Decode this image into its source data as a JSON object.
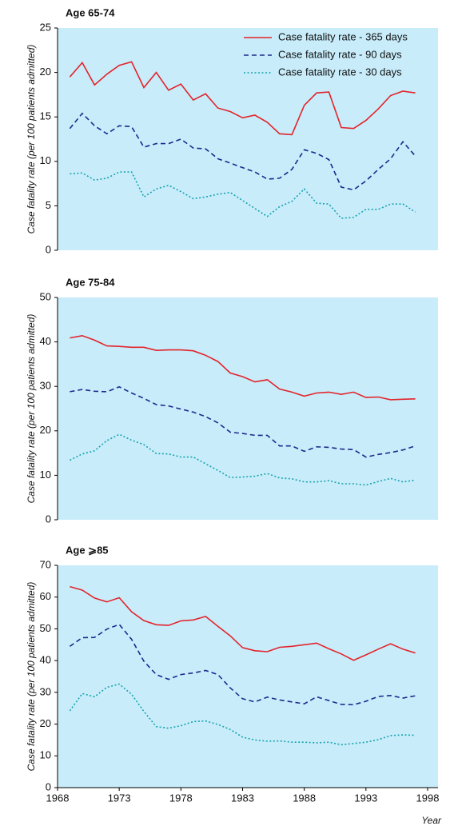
{
  "chart_data": [
    {
      "type": "line",
      "title": "Age 65-74",
      "ylabel": "Case fatality rate (per 100 patients admitted)",
      "x": [
        1969,
        1970,
        1971,
        1972,
        1973,
        1974,
        1975,
        1976,
        1977,
        1978,
        1979,
        1980,
        1981,
        1982,
        1983,
        1984,
        1985,
        1986,
        1987,
        1988,
        1989,
        1990,
        1991,
        1992,
        1993,
        1994,
        1995,
        1996,
        1997
      ],
      "xlim": [
        1968,
        1998
      ],
      "ylim": [
        0,
        25
      ],
      "yticks": [
        0,
        5,
        10,
        15,
        20,
        25
      ],
      "legend": "upper right",
      "series": [
        {
          "name": "Case fatality rate - 365 days",
          "color": "#e3242b",
          "style": "solid",
          "values": [
            19.5,
            21.1,
            18.6,
            19.8,
            20.8,
            21.2,
            18.3,
            20.0,
            18.0,
            18.7,
            16.9,
            17.6,
            16.0,
            15.6,
            14.9,
            15.2,
            14.4,
            13.1,
            13.0,
            16.3,
            17.7,
            17.8,
            13.8,
            13.7,
            14.6,
            15.9,
            17.4,
            17.9,
            17.7
          ]
        },
        {
          "name": "Case fatality rate - 90 days",
          "color": "#1c2a8c",
          "style": "dashed",
          "values": [
            13.7,
            15.4,
            14.0,
            13.1,
            14.0,
            13.9,
            11.6,
            12.0,
            12.0,
            12.5,
            11.5,
            11.4,
            10.3,
            9.8,
            9.3,
            8.8,
            8.0,
            8.1,
            9.1,
            11.3,
            10.9,
            10.2,
            7.1,
            6.8,
            7.8,
            9.1,
            10.3,
            12.2,
            10.6
          ]
        },
        {
          "name": "Case fatality rate - 30 days",
          "color": "#17a3ad",
          "style": "dotted",
          "values": [
            8.6,
            8.7,
            7.9,
            8.1,
            8.8,
            8.8,
            6.0,
            6.9,
            7.3,
            6.6,
            5.8,
            6.0,
            6.3,
            6.5,
            5.6,
            4.7,
            3.8,
            4.9,
            5.5,
            6.9,
            5.3,
            5.2,
            3.6,
            3.7,
            4.6,
            4.6,
            5.2,
            5.2,
            4.3
          ]
        }
      ]
    },
    {
      "type": "line",
      "title": "Age 75-84",
      "ylabel": "Case fatality rate (per 100 patients admitted)",
      "x": [
        1969,
        1970,
        1971,
        1972,
        1973,
        1974,
        1975,
        1976,
        1977,
        1978,
        1979,
        1980,
        1981,
        1982,
        1983,
        1984,
        1985,
        1986,
        1987,
        1988,
        1989,
        1990,
        1991,
        1992,
        1993,
        1994,
        1995,
        1996,
        1997
      ],
      "xlim": [
        1968,
        1998
      ],
      "ylim": [
        0,
        50
      ],
      "yticks": [
        0,
        10,
        20,
        30,
        40,
        50
      ],
      "series": [
        {
          "color": "#e3242b",
          "style": "solid",
          "values": [
            40.9,
            41.4,
            40.4,
            39.1,
            39.0,
            38.8,
            38.8,
            38.1,
            38.2,
            38.2,
            38.0,
            37.0,
            35.6,
            33.0,
            32.2,
            31.0,
            31.5,
            29.4,
            28.7,
            27.8,
            28.5,
            28.7,
            28.2,
            28.7,
            27.5,
            27.6,
            27.0,
            27.1,
            27.2
          ]
        },
        {
          "color": "#1c2a8c",
          "style": "dashed",
          "values": [
            28.8,
            29.3,
            28.9,
            28.8,
            29.9,
            28.5,
            27.3,
            25.9,
            25.6,
            24.9,
            24.2,
            23.2,
            21.8,
            19.7,
            19.4,
            19.0,
            19.0,
            16.6,
            16.6,
            15.4,
            16.4,
            16.3,
            15.9,
            15.8,
            14.1,
            14.7,
            15.1,
            15.7,
            16.6
          ]
        },
        {
          "color": "#17a3ad",
          "style": "dotted",
          "values": [
            13.4,
            14.8,
            15.5,
            17.8,
            19.2,
            17.9,
            16.9,
            14.9,
            14.8,
            14.1,
            14.1,
            12.6,
            11.1,
            9.5,
            9.6,
            9.8,
            10.4,
            9.4,
            9.2,
            8.5,
            8.5,
            8.8,
            8.1,
            8.1,
            7.8,
            8.6,
            9.3,
            8.5,
            8.9
          ]
        }
      ]
    },
    {
      "type": "line",
      "title": "Age ⩾85",
      "ylabel": "Case fatality rate (per 100 patients admitted)",
      "xlabel": "Year",
      "x": [
        1969,
        1970,
        1971,
        1972,
        1973,
        1974,
        1975,
        1976,
        1977,
        1978,
        1979,
        1980,
        1981,
        1982,
        1983,
        1984,
        1985,
        1986,
        1987,
        1988,
        1989,
        1990,
        1991,
        1992,
        1993,
        1994,
        1995,
        1996,
        1997
      ],
      "xlim": [
        1968,
        1998
      ],
      "xticks": [
        1968,
        1973,
        1978,
        1983,
        1988,
        1993,
        1998
      ],
      "ylim": [
        0,
        70
      ],
      "yticks": [
        0,
        10,
        20,
        30,
        40,
        50,
        60,
        70
      ],
      "series": [
        {
          "color": "#e3242b",
          "style": "solid",
          "values": [
            63.3,
            62.2,
            59.7,
            58.5,
            59.8,
            55.4,
            52.6,
            51.3,
            51.1,
            52.5,
            52.8,
            53.9,
            50.8,
            47.8,
            44.1,
            43.1,
            42.8,
            44.2,
            44.5,
            45.0,
            45.5,
            43.7,
            42.1,
            40.1,
            41.8,
            43.6,
            45.3,
            43.6,
            42.4
          ]
        },
        {
          "color": "#1c2a8c",
          "style": "dashed",
          "values": [
            44.5,
            47.2,
            47.3,
            49.9,
            51.4,
            46.7,
            39.8,
            35.6,
            34.1,
            35.6,
            36.1,
            36.9,
            35.6,
            31.4,
            28.0,
            27.0,
            28.5,
            27.6,
            27.0,
            26.4,
            28.6,
            27.4,
            26.2,
            26.1,
            27.2,
            28.7,
            29.0,
            28.2,
            28.9
          ]
        },
        {
          "color": "#17a3ad",
          "style": "dotted",
          "values": [
            24.2,
            29.6,
            28.6,
            31.6,
            32.6,
            29.4,
            24.0,
            19.2,
            18.7,
            19.5,
            20.8,
            21.0,
            19.9,
            18.3,
            15.9,
            15.0,
            14.6,
            14.7,
            14.3,
            14.3,
            14.1,
            14.3,
            13.5,
            13.9,
            14.3,
            15.1,
            16.4,
            16.6,
            16.5
          ]
        }
      ]
    }
  ]
}
